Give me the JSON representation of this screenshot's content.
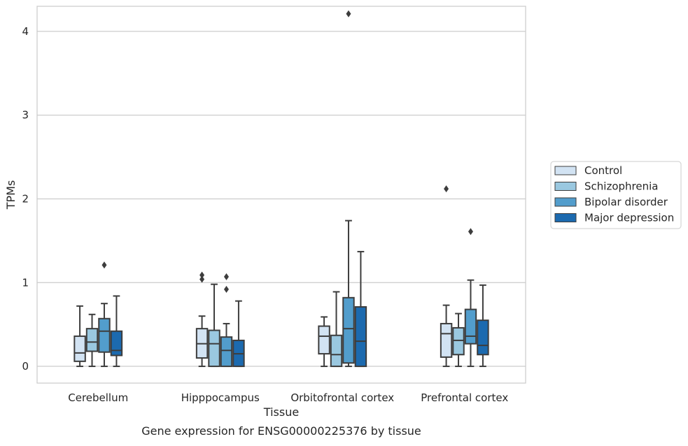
{
  "chart_data": {
    "type": "box",
    "title": "",
    "caption": "Gene expression for ENSG00000225376 by tissue",
    "xlabel": "Tissue",
    "ylabel": "TPMs",
    "ylim": [
      -0.2,
      4.3
    ],
    "yticks": [
      0,
      1,
      2,
      3,
      4
    ],
    "grid": true,
    "legend_position": "right",
    "categories": [
      "Cerebellum",
      "Hipppocampus",
      "Orbitofrontal cortex",
      "Prefrontal cortex"
    ],
    "series": [
      {
        "name": "Control",
        "color": "#d2e3f3",
        "boxes": [
          {
            "whisker_low": 0.0,
            "q1": 0.06,
            "median": 0.16,
            "q3": 0.36,
            "whisker_high": 0.72,
            "outliers": []
          },
          {
            "whisker_low": 0.0,
            "q1": 0.1,
            "median": 0.27,
            "q3": 0.45,
            "whisker_high": 0.6,
            "outliers": [
              1.04,
              1.09
            ]
          },
          {
            "whisker_low": 0.0,
            "q1": 0.15,
            "median": 0.36,
            "q3": 0.48,
            "whisker_high": 0.59,
            "outliers": []
          },
          {
            "whisker_low": 0.0,
            "q1": 0.11,
            "median": 0.39,
            "q3": 0.51,
            "whisker_high": 0.73,
            "outliers": [
              2.12
            ]
          }
        ]
      },
      {
        "name": "Schizophrenia",
        "color": "#9ac8e0",
        "boxes": [
          {
            "whisker_low": 0.0,
            "q1": 0.18,
            "median": 0.29,
            "q3": 0.45,
            "whisker_high": 0.62,
            "outliers": []
          },
          {
            "whisker_low": 0.0,
            "q1": 0.0,
            "median": 0.27,
            "q3": 0.43,
            "whisker_high": 0.98,
            "outliers": []
          },
          {
            "whisker_low": 0.0,
            "q1": 0.0,
            "median": 0.14,
            "q3": 0.37,
            "whisker_high": 0.89,
            "outliers": []
          },
          {
            "whisker_low": 0.0,
            "q1": 0.14,
            "median": 0.31,
            "q3": 0.46,
            "whisker_high": 0.63,
            "outliers": []
          }
        ]
      },
      {
        "name": "Bipolar disorder",
        "color": "#529dcc",
        "boxes": [
          {
            "whisker_low": 0.0,
            "q1": 0.17,
            "median": 0.42,
            "q3": 0.57,
            "whisker_high": 0.75,
            "outliers": [
              1.21
            ]
          },
          {
            "whisker_low": 0.0,
            "q1": 0.0,
            "median": 0.19,
            "q3": 0.35,
            "whisker_high": 0.51,
            "outliers": [
              0.92,
              1.07
            ]
          },
          {
            "whisker_low": 0.0,
            "q1": 0.04,
            "median": 0.45,
            "q3": 0.82,
            "whisker_high": 1.74,
            "outliers": [
              4.21
            ]
          },
          {
            "whisker_low": 0.0,
            "q1": 0.27,
            "median": 0.36,
            "q3": 0.68,
            "whisker_high": 1.03,
            "outliers": [
              1.61
            ]
          }
        ]
      },
      {
        "name": "Major depression",
        "color": "#1c6aaf",
        "boxes": [
          {
            "whisker_low": 0.0,
            "q1": 0.13,
            "median": 0.19,
            "q3": 0.42,
            "whisker_high": 0.84,
            "outliers": []
          },
          {
            "whisker_low": 0.0,
            "q1": 0.0,
            "median": 0.15,
            "q3": 0.31,
            "whisker_high": 0.78,
            "outliers": []
          },
          {
            "whisker_low": 0.0,
            "q1": 0.0,
            "median": 0.3,
            "q3": 0.71,
            "whisker_high": 1.37,
            "outliers": []
          },
          {
            "whisker_low": 0.0,
            "q1": 0.14,
            "median": 0.25,
            "q3": 0.55,
            "whisker_high": 0.97,
            "outliers": []
          }
        ]
      }
    ]
  }
}
